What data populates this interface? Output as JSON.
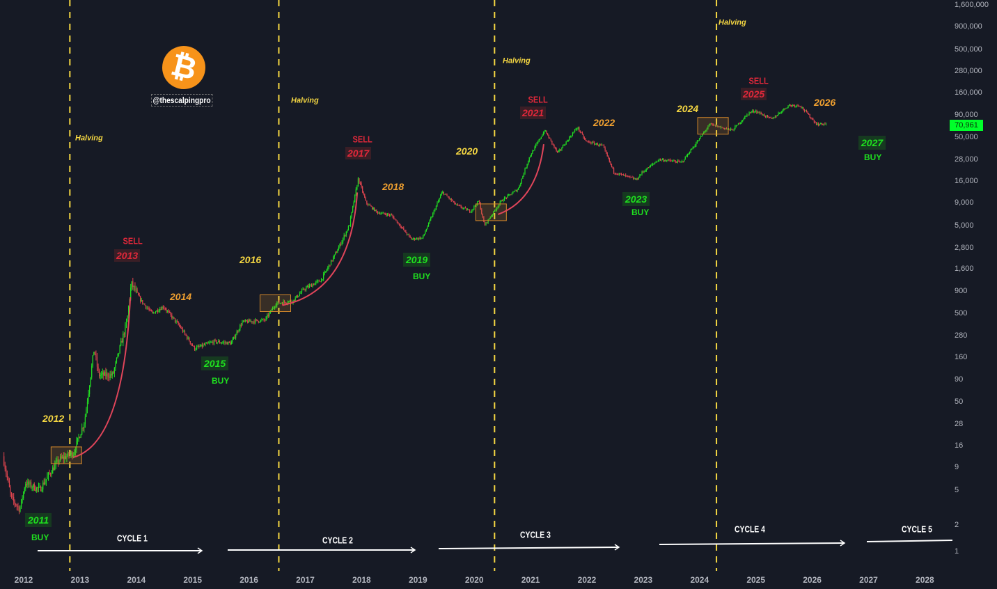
{
  "chart_data": {
    "type": "candlestick",
    "title": "",
    "yscale": "log",
    "y_ticks": [
      "1",
      "2",
      "5",
      "9",
      "16",
      "28",
      "50",
      "90",
      "160",
      "280",
      "500",
      "900",
      "1,600",
      "2,800",
      "5,000",
      "9,000",
      "16,000",
      "28,000",
      "50,000",
      "90,000",
      "160,000",
      "280,000",
      "500,000",
      "900,000",
      "1,600,000"
    ],
    "x_ticks": [
      "2012",
      "2013",
      "2014",
      "2015",
      "2016",
      "2017",
      "2018",
      "2019",
      "2020",
      "2021",
      "2022",
      "2023",
      "2024",
      "2025",
      "2026",
      "2027",
      "2028"
    ],
    "last_price": "70,961",
    "price_path": [
      [
        2011.65,
        12
      ],
      [
        2011.8,
        4
      ],
      [
        2011.95,
        3
      ],
      [
        2012.05,
        6
      ],
      [
        2012.3,
        5
      ],
      [
        2012.5,
        8
      ],
      [
        2012.65,
        11
      ],
      [
        2012.9,
        13
      ],
      [
        2013.1,
        30
      ],
      [
        2013.27,
        200
      ],
      [
        2013.35,
        100
      ],
      [
        2013.6,
        100
      ],
      [
        2013.85,
        400
      ],
      [
        2013.93,
        1100
      ],
      [
        2014.1,
        700
      ],
      [
        2014.3,
        500
      ],
      [
        2014.5,
        600
      ],
      [
        2014.8,
        350
      ],
      [
        2015.05,
        200
      ],
      [
        2015.4,
        240
      ],
      [
        2015.7,
        230
      ],
      [
        2015.9,
        400
      ],
      [
        2016.3,
        420
      ],
      [
        2016.5,
        650
      ],
      [
        2016.8,
        700
      ],
      [
        2017.0,
        950
      ],
      [
        2017.3,
        1200
      ],
      [
        2017.6,
        2700
      ],
      [
        2017.8,
        5000
      ],
      [
        2017.96,
        17000
      ],
      [
        2018.1,
        9000
      ],
      [
        2018.3,
        7000
      ],
      [
        2018.55,
        6500
      ],
      [
        2018.9,
        3500
      ],
      [
        2019.1,
        3600
      ],
      [
        2019.45,
        12000
      ],
      [
        2019.7,
        8500
      ],
      [
        2019.95,
        7200
      ],
      [
        2020.1,
        9500
      ],
      [
        2020.2,
        5000
      ],
      [
        2020.5,
        9500
      ],
      [
        2020.8,
        13000
      ],
      [
        2021.0,
        30000
      ],
      [
        2021.27,
        60000
      ],
      [
        2021.5,
        33000
      ],
      [
        2021.85,
        65000
      ],
      [
        2022.0,
        45000
      ],
      [
        2022.3,
        40000
      ],
      [
        2022.5,
        20000
      ],
      [
        2022.9,
        16500
      ],
      [
        2023.0,
        20000
      ],
      [
        2023.3,
        28000
      ],
      [
        2023.7,
        26000
      ],
      [
        2023.95,
        42000
      ],
      [
        2024.2,
        70000
      ],
      [
        2024.6,
        60000
      ],
      [
        2024.9,
        95000
      ],
      [
        2025.0,
        100000
      ],
      [
        2025.3,
        80000
      ],
      [
        2025.6,
        115000
      ],
      [
        2025.8,
        115000
      ],
      [
        2025.95,
        90000
      ],
      [
        2026.1,
        70000
      ],
      [
        2026.25,
        70961
      ]
    ],
    "halvings": [
      2012.82,
      2016.53,
      2020.36,
      2024.3
    ],
    "colors": {
      "background": "#161a25",
      "up": "#22e022",
      "down": "#e0454f",
      "halving_line": "#f5d742",
      "curve": "#e0455a",
      "box": "#d4882a",
      "last_price": "#00ff2a"
    }
  },
  "branding": {
    "logo_glyph": "₿",
    "handle": "@thescalpingpro"
  },
  "annotations": {
    "halving": "Halving",
    "sell": "SELL",
    "buy": "BUY",
    "years": {
      "y2011": "2011",
      "y2012": "2012",
      "y2013": "2013",
      "y2014": "2014",
      "y2015": "2015",
      "y2016": "2016",
      "y2017": "2017",
      "y2018": "2018",
      "y2019": "2019",
      "y2020": "2020",
      "y2021": "2021",
      "y2022": "2022",
      "y2023": "2023",
      "y2024": "2024",
      "y2025": "2025",
      "y2026": "2026",
      "y2027": "2027"
    },
    "cycles": [
      "CYCLE 1",
      "CYCLE 2",
      "CYCLE 3",
      "CYCLE 4",
      "CYCLE 5"
    ]
  }
}
